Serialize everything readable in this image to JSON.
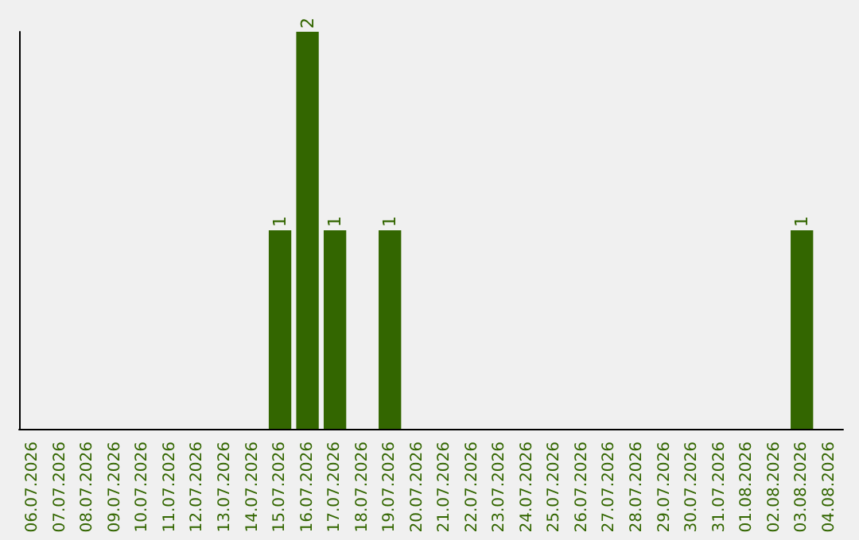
{
  "chart_data": {
    "type": "bar",
    "categories": [
      "06.07.2026",
      "07.07.2026",
      "08.07.2026",
      "09.07.2026",
      "10.07.2026",
      "11.07.2026",
      "12.07.2026",
      "13.07.2026",
      "14.07.2026",
      "15.07.2026",
      "16.07.2026",
      "17.07.2026",
      "18.07.2026",
      "19.07.2026",
      "20.07.2026",
      "21.07.2026",
      "22.07.2026",
      "23.07.2026",
      "24.07.2026",
      "25.07.2026",
      "26.07.2026",
      "27.07.2026",
      "28.07.2026",
      "29.07.2026",
      "30.07.2026",
      "31.07.2026",
      "01.08.2026",
      "02.08.2026",
      "03.08.2026",
      "04.08.2026"
    ],
    "values": [
      0,
      0,
      0,
      0,
      0,
      0,
      0,
      0,
      0,
      1,
      2,
      1,
      0,
      1,
      0,
      0,
      0,
      0,
      0,
      0,
      0,
      0,
      0,
      0,
      0,
      0,
      0,
      0,
      1,
      0
    ],
    "value_labels": [
      null,
      null,
      null,
      null,
      null,
      null,
      null,
      null,
      null,
      "1",
      "2",
      "1",
      null,
      "1",
      null,
      null,
      null,
      null,
      null,
      null,
      null,
      null,
      null,
      null,
      null,
      null,
      null,
      null,
      "1",
      null
    ],
    "color": "#336600",
    "tick_labels": "x"
  }
}
